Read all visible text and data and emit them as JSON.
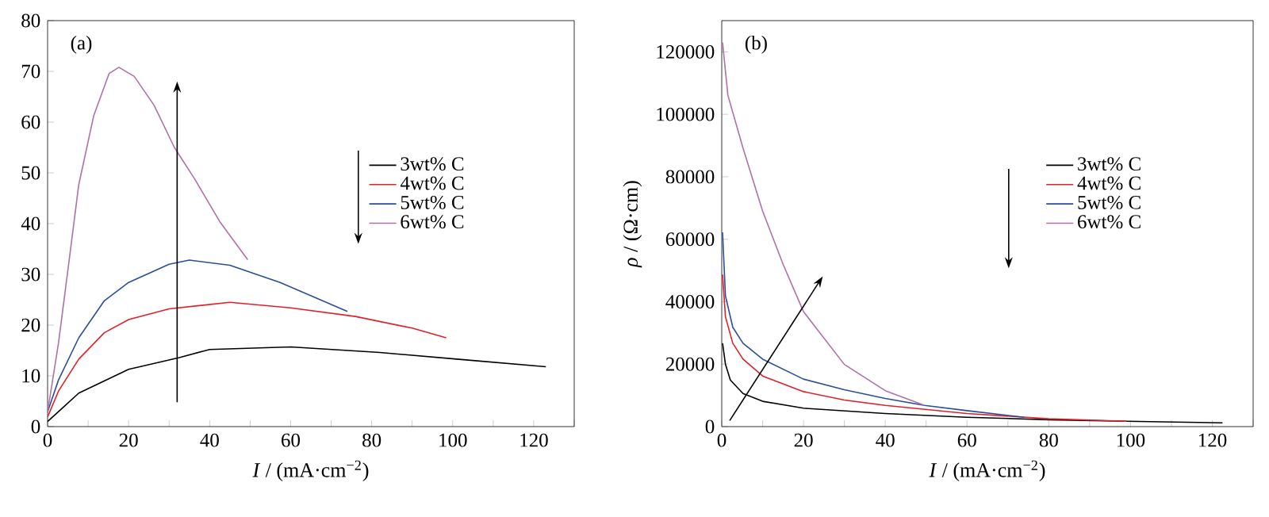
{
  "chart_data": [
    {
      "type": "line",
      "title": "(a)",
      "xlabel": "*I* / (mA·cm$^{−2}$)",
      "xlim": [
        0,
        130
      ],
      "ylim": [
        0,
        80
      ],
      "xticks": [
        0,
        {
          "value": 10,
          "label": null
        },
        20,
        {
          "value": 30,
          "label": null
        },
        40,
        {
          "value": 50,
          "label": null
        },
        60,
        {
          "value": 70,
          "label": null
        },
        80,
        {
          "value": 90,
          "label": null
        },
        100,
        {
          "value": 110,
          "label": null
        },
        120,
        {
          "value": 130,
          "label": null
        }
      ],
      "yticks": [
        0,
        10,
        20,
        30,
        40,
        50,
        60,
        70,
        80
      ],
      "legend": "right",
      "series": [
        {
          "name": "3wt% C",
          "color": "#000000",
          "x": [
            0,
            7.7,
            20,
            32.5,
            40,
            60,
            82,
            101,
            123
          ],
          "values": [
            1,
            6.6,
            11.3,
            13.6,
            15.2,
            15.7,
            14.6,
            13.3,
            11.8
          ]
        },
        {
          "name": "4wt% C",
          "color": "#e0202a",
          "x": [
            0,
            2.7,
            7.7,
            14,
            20,
            30,
            45,
            60,
            76,
            90,
            98.4
          ],
          "values": [
            1.9,
            7,
            13.3,
            18.5,
            21.1,
            23.2,
            24.5,
            23.4,
            21.7,
            19.4,
            17.5
          ]
        },
        {
          "name": "5wt% C",
          "color": "#2a4e9a",
          "x": [
            0,
            2.7,
            7.7,
            14,
            20,
            30,
            35,
            45,
            57.4,
            74
          ],
          "values": [
            2.9,
            9.2,
            17.5,
            24.8,
            28.4,
            32,
            32.8,
            31.8,
            28.4,
            22.7
          ]
        },
        {
          "name": "6wt% C",
          "color": "#b070a8",
          "x": [
            0,
            2.7,
            5.2,
            7.7,
            11.4,
            15.2,
            17.6,
            21.4,
            26.3,
            31.3,
            36.3,
            42.5,
            49.4
          ],
          "values": [
            2.9,
            16.5,
            32,
            47.7,
            61.3,
            69.6,
            70.8,
            69,
            63.3,
            55,
            48.8,
            40.4,
            32.9
          ]
        }
      ]
    },
    {
      "type": "line",
      "title": "(b)",
      "xlabel": "*I* / (mA·cm$^{−2}$)",
      "ylabel": "*ρ* / (Ω·cm)",
      "xlim": [
        0,
        130
      ],
      "ylim": [
        0,
        130000
      ],
      "xticks": [
        0,
        {
          "value": 10,
          "label": null
        },
        20,
        {
          "value": 30,
          "label": null
        },
        40,
        {
          "value": 50,
          "label": null
        },
        60,
        {
          "value": 70,
          "label": null
        },
        80,
        {
          "value": 90,
          "label": null
        },
        100,
        {
          "value": 110,
          "label": null
        },
        120,
        {
          "value": 130,
          "label": null
        }
      ],
      "yticks": [
        0,
        20000,
        40000,
        60000,
        80000,
        100000,
        120000
      ],
      "legend": "right",
      "series": [
        {
          "name": "3wt% C",
          "color": "#000000",
          "x": [
            0.2,
            0.9,
            2.1,
            5.2,
            10,
            20,
            40,
            60,
            80,
            99,
            122.5
          ],
          "values": [
            26700,
            20000,
            14900,
            10600,
            8100,
            5900,
            4200,
            3000,
            2200,
            1700,
            1200
          ]
        },
        {
          "name": "4wt% C",
          "color": "#e0202a",
          "x": [
            0.2,
            0.9,
            2.7,
            5.2,
            10,
            20,
            30,
            40,
            60,
            80,
            99
          ],
          "values": [
            48700,
            35200,
            26700,
            21600,
            16200,
            11200,
            8500,
            6800,
            4200,
            2500,
            1700
          ]
        },
        {
          "name": "5wt% C",
          "color": "#2a4e9a",
          "x": [
            0.2,
            0.9,
            2.7,
            5.2,
            10,
            20,
            30,
            40,
            49.6,
            60,
            74
          ],
          "values": [
            62200,
            41900,
            31800,
            26700,
            21600,
            15200,
            11800,
            9000,
            6800,
            5100,
            3000
          ]
        },
        {
          "name": "6wt% C",
          "color": "#b070a8",
          "x": [
            0.2,
            1.5,
            5.2,
            10,
            15,
            20,
            30,
            40,
            49.6
          ],
          "values": [
            123000,
            106100,
            89200,
            69000,
            52000,
            36800,
            19900,
            11500,
            6800
          ]
        }
      ]
    }
  ]
}
